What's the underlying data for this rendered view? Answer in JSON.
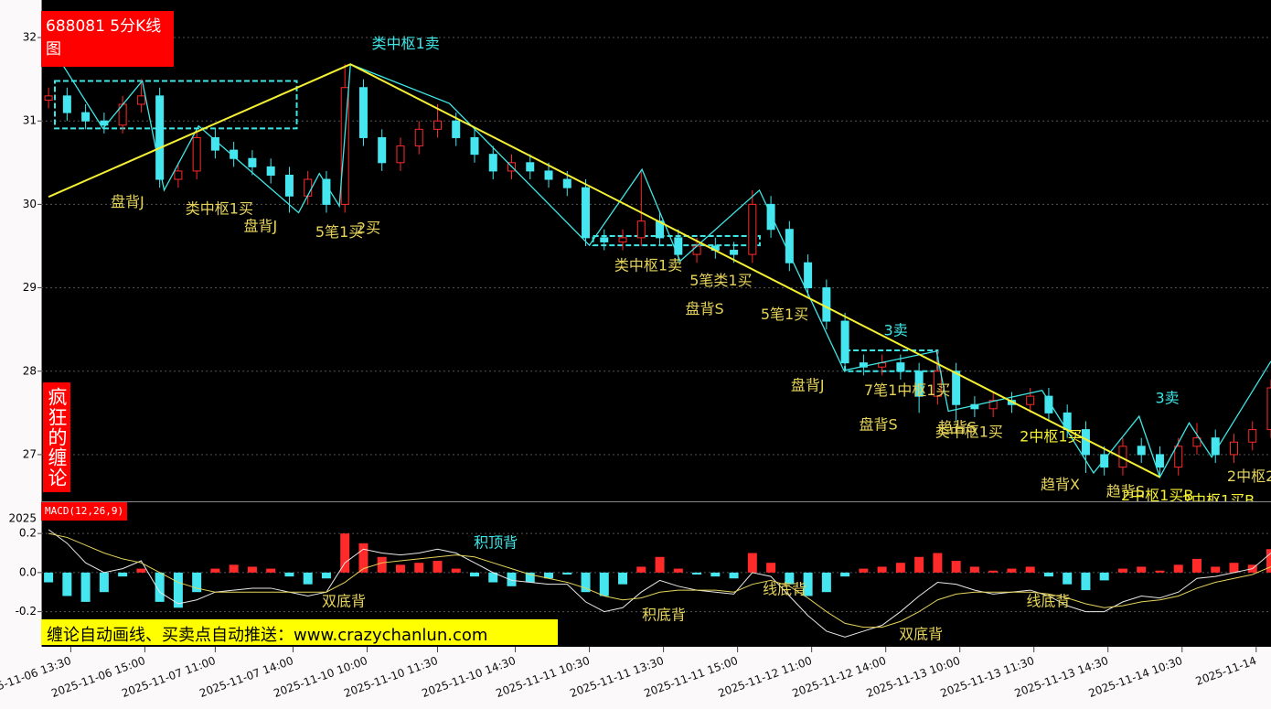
{
  "chart_data": {
    "type": "candlestick",
    "title": "688081 5分K线图",
    "brand": "疯狂的缠论",
    "banner": "缠论自动画线、买卖点自动推送：www.crazychanlun.com",
    "up_color": "#ff2a2a",
    "down_color": "#45e6f0",
    "grid": true,
    "xlim": [
      -2,
      330
    ],
    "ylim": [
      26.44,
      32.45
    ],
    "yticks": [
      27,
      28,
      29,
      30,
      31,
      32
    ],
    "xticks": [
      {
        "value": 6,
        "label": "2025-11-06 13:30"
      },
      {
        "value": 26,
        "label": "2025-11-06 15:00"
      },
      {
        "value": 45,
        "label": "2025-11-07 11:00"
      },
      {
        "value": 66,
        "label": "2025-11-07 14:00"
      },
      {
        "value": 86,
        "label": "2025-11-10 10:00"
      },
      {
        "value": 105,
        "label": "2025-11-10 11:30"
      },
      {
        "value": 126,
        "label": "2025-11-10 14:30"
      },
      {
        "value": 146,
        "label": "2025-11-11 10:30"
      },
      {
        "value": 166,
        "label": "2025-11-11 13:30"
      },
      {
        "value": 186,
        "label": "2025-11-11 15:00"
      },
      {
        "value": 206,
        "label": "2025-11-12 11:00"
      },
      {
        "value": 226,
        "label": "2025-11-12 14:00"
      },
      {
        "value": 246,
        "label": "2025-11-13 10:00"
      },
      {
        "value": 266,
        "label": "2025-11-13 11:30"
      },
      {
        "value": 286,
        "label": "2025-11-13 14:30"
      },
      {
        "value": 306,
        "label": "2025-11-14 10:30"
      },
      {
        "value": 326,
        "label": "2025-11-14"
      }
    ],
    "candles": {
      "x": [
        0,
        5,
        10,
        15,
        20,
        25,
        30,
        35,
        40,
        45,
        50,
        55,
        60,
        65,
        70,
        75,
        80,
        85,
        90,
        95,
        100,
        105,
        110,
        115,
        120,
        125,
        130,
        135,
        140,
        145,
        150,
        155,
        160,
        165,
        170,
        175,
        180,
        185,
        190,
        195,
        200,
        205,
        210,
        215,
        220,
        225,
        230,
        235,
        240,
        245,
        250,
        255,
        260,
        265,
        270,
        275,
        280,
        285,
        290,
        295,
        300,
        305,
        310,
        315,
        320,
        325,
        330
      ],
      "open": [
        31.25,
        31.3,
        31.1,
        31.0,
        30.95,
        31.2,
        31.3,
        30.3,
        30.4,
        30.8,
        30.65,
        30.55,
        30.45,
        30.35,
        30.1,
        30.3,
        30.0,
        31.4,
        30.8,
        30.5,
        30.7,
        30.9,
        31.0,
        30.8,
        30.6,
        30.4,
        30.5,
        30.4,
        30.3,
        30.2,
        29.6,
        29.55,
        29.6,
        29.8,
        29.6,
        29.4,
        29.5,
        29.45,
        29.4,
        30.0,
        29.7,
        29.3,
        29.0,
        28.6,
        28.1,
        28.05,
        28.1,
        28.0,
        27.7,
        28.0,
        27.6,
        27.55,
        27.65,
        27.6,
        27.7,
        27.5,
        27.3,
        27.0,
        26.85,
        27.1,
        27.0,
        26.85,
        27.1,
        27.2,
        27.0,
        27.15,
        27.3
      ],
      "high": [
        31.4,
        31.4,
        31.2,
        31.1,
        31.3,
        31.5,
        31.4,
        30.5,
        30.9,
        30.9,
        30.75,
        30.65,
        30.55,
        30.45,
        30.4,
        30.4,
        31.68,
        31.5,
        30.9,
        30.8,
        31.0,
        31.2,
        31.1,
        30.9,
        30.7,
        30.6,
        30.6,
        30.5,
        30.4,
        30.3,
        29.7,
        29.7,
        30.4,
        29.9,
        29.7,
        29.6,
        29.6,
        29.55,
        30.17,
        30.1,
        29.8,
        29.4,
        29.1,
        28.7,
        28.2,
        28.2,
        28.2,
        28.1,
        28.24,
        28.1,
        27.7,
        27.75,
        27.75,
        27.8,
        27.8,
        27.6,
        27.4,
        27.1,
        27.2,
        27.2,
        27.1,
        27.2,
        27.38,
        27.3,
        27.25,
        27.4,
        27.9
      ],
      "low": [
        31.15,
        31.0,
        30.9,
        30.85,
        30.85,
        31.1,
        30.2,
        30.2,
        30.3,
        30.55,
        30.45,
        30.35,
        30.25,
        29.9,
        30.0,
        29.9,
        29.9,
        30.7,
        30.4,
        30.4,
        30.6,
        30.8,
        30.7,
        30.5,
        30.3,
        30.3,
        30.3,
        30.2,
        30.1,
        29.5,
        29.45,
        29.45,
        29.5,
        29.5,
        29.3,
        29.3,
        29.35,
        29.3,
        29.3,
        29.6,
        29.2,
        28.9,
        28.5,
        28.0,
        27.95,
        27.95,
        27.9,
        27.5,
        27.6,
        27.4,
        27.45,
        27.45,
        27.5,
        27.5,
        27.4,
        27.2,
        26.78,
        26.75,
        26.75,
        26.9,
        26.73,
        26.75,
        27.0,
        26.9,
        26.9,
        27.05,
        27.2
      ],
      "close": [
        31.3,
        31.1,
        31.0,
        30.95,
        31.2,
        31.3,
        30.3,
        30.4,
        30.8,
        30.65,
        30.55,
        30.45,
        30.35,
        30.1,
        30.3,
        30.0,
        31.4,
        30.8,
        30.5,
        30.7,
        30.9,
        31.0,
        30.8,
        30.6,
        30.4,
        30.5,
        30.4,
        30.3,
        30.2,
        29.6,
        29.55,
        29.6,
        29.8,
        29.6,
        29.4,
        29.5,
        29.45,
        29.4,
        30.0,
        29.7,
        29.3,
        29.0,
        28.6,
        28.1,
        28.05,
        28.1,
        28.0,
        27.7,
        28.0,
        27.6,
        27.55,
        27.65,
        27.6,
        27.7,
        27.5,
        27.3,
        27.0,
        26.85,
        27.1,
        27.0,
        26.85,
        27.1,
        27.2,
        27.0,
        27.15,
        27.3,
        27.8
      ]
    },
    "bi": {
      "color": "#3ee6e6",
      "x": [
        3.7,
        14.7,
        25.3,
        31.2,
        40.5,
        67.5,
        73.1,
        78.5,
        81.5,
        108.2,
        146.0,
        160.2,
        170.5,
        191.9,
        214.7,
        239.7,
        242.9,
        268.2,
        282.1,
        294.4,
        300.0,
        307.9,
        314.0,
        330.0
      ],
      "y": [
        31.68,
        30.91,
        31.48,
        30.17,
        30.94,
        29.9,
        30.37,
        29.98,
        31.68,
        31.21,
        29.51,
        30.42,
        29.32,
        30.17,
        28.01,
        28.24,
        27.52,
        27.77,
        26.78,
        27.46,
        26.73,
        27.38,
        26.97,
        28.12
      ]
    },
    "trend": {
      "color": "#f5f032",
      "x": [
        0,
        81.5,
        300.0
      ],
      "y": [
        30.09,
        31.68,
        26.73
      ]
    },
    "pivots": {
      "color": "#3ee6e6",
      "boxes": [
        {
          "x0": 1.7,
          "x1": 67.0,
          "y0": 30.91,
          "y1": 31.48
        },
        {
          "x0": 147.0,
          "x1": 192.0,
          "y0": 29.51,
          "y1": 29.62
        },
        {
          "x0": 215.0,
          "x1": 240.0,
          "y0": 28.0,
          "y1": 28.25
        }
      ]
    },
    "annotations": [
      {
        "text": "盘背J",
        "x": 21.3,
        "y": 30.02,
        "color": "#e6d35a"
      },
      {
        "text": "类中枢1买",
        "x": 46.1,
        "y": 29.94,
        "color": "#e6d35a"
      },
      {
        "text": "盘背J",
        "x": 57.2,
        "y": 29.73,
        "color": "#e6d35a"
      },
      {
        "text": "5笔1买",
        "x": 78.5,
        "y": 29.66,
        "color": "#e6d35a"
      },
      {
        "text": "2买",
        "x": 86.4,
        "y": 29.71,
        "color": "#e6d35a"
      },
      {
        "text": "类中枢1卖",
        "x": 96.4,
        "y": 31.92,
        "color": "#3ee6e6"
      },
      {
        "text": "类中枢1卖",
        "x": 161.9,
        "y": 29.26,
        "color": "#e6d35a"
      },
      {
        "text": "5笔类1买",
        "x": 181.5,
        "y": 29.08,
        "color": "#e6d35a"
      },
      {
        "text": "盘背S",
        "x": 177.1,
        "y": 28.74,
        "color": "#e6d35a"
      },
      {
        "text": "5笔1买",
        "x": 198.7,
        "y": 28.67,
        "color": "#e6d35a"
      },
      {
        "text": "3卖",
        "x": 228.7,
        "y": 28.48,
        "color": "#3ee6e6"
      },
      {
        "text": "盘背J",
        "x": 204.9,
        "y": 27.82,
        "color": "#e6d35a"
      },
      {
        "text": "7笔1中枢1买",
        "x": 231.8,
        "y": 27.76,
        "color": "#e6d35a"
      },
      {
        "text": "盘背S",
        "x": 224.0,
        "y": 27.35,
        "color": "#e6d35a"
      },
      {
        "text": "趋背S",
        "x": 245.3,
        "y": 27.32,
        "color": "#e6d35a"
      },
      {
        "text": "类中枢1买",
        "x": 248.5,
        "y": 27.26,
        "color": "#e6d35a"
      },
      {
        "text": "2中枢1买",
        "x": 270.6,
        "y": 27.21,
        "color": "#f5f032"
      },
      {
        "text": "3卖",
        "x": 302.0,
        "y": 27.67,
        "color": "#3ee6e6"
      },
      {
        "text": "趋背X",
        "x": 273.1,
        "y": 26.63,
        "color": "#e6d35a"
      },
      {
        "text": "趋背S",
        "x": 290.7,
        "y": 26.55,
        "color": "#e6d35a"
      },
      {
        "text": "2中枢1买B",
        "x": 299.3,
        "y": 26.5,
        "color": "#f5f032"
      },
      {
        "text": "2中枢1买B",
        "x": 315.8,
        "y": 26.44,
        "color": "#f5f032"
      },
      {
        "text": "2中枢2",
        "x": 324.6,
        "y": 26.73,
        "color": "#e6d35a"
      }
    ],
    "macd": {
      "title": "MACD(12,26,9)",
      "corner_label": "2025",
      "ylim": [
        -0.38,
        0.36
      ],
      "yticks": [
        0.2,
        {
          "value": 0,
          "label": "0.0"
        },
        -0.2
      ],
      "hist": [
        -0.05,
        -0.12,
        -0.15,
        -0.1,
        -0.02,
        0.02,
        -0.15,
        -0.18,
        -0.1,
        0.02,
        0.04,
        0.03,
        0.02,
        -0.02,
        -0.06,
        -0.03,
        0.2,
        0.15,
        0.08,
        0.04,
        0.05,
        0.06,
        0.02,
        -0.02,
        -0.05,
        -0.07,
        -0.05,
        -0.03,
        -0.01,
        -0.1,
        -0.12,
        -0.06,
        0.03,
        0.08,
        0.02,
        -0.01,
        -0.02,
        -0.03,
        0.1,
        0.05,
        -0.06,
        -0.12,
        -0.1,
        -0.02,
        0.02,
        0.03,
        0.05,
        0.08,
        0.1,
        0.06,
        0.03,
        0.01,
        0.02,
        0.03,
        -0.02,
        -0.06,
        -0.09,
        -0.04,
        0.02,
        0.03,
        0.01,
        0.04,
        0.07,
        0.03,
        0.05,
        0.04,
        0.12
      ],
      "lines": [
        {
          "color": "#e8e8e8",
          "values": [
            0.22,
            0.15,
            0.05,
            0.0,
            0.02,
            0.06,
            -0.1,
            -0.16,
            -0.14,
            -0.1,
            -0.09,
            -0.08,
            -0.08,
            -0.1,
            -0.12,
            -0.1,
            0.05,
            0.12,
            0.1,
            0.09,
            0.1,
            0.12,
            0.1,
            0.05,
            0.0,
            -0.04,
            -0.05,
            -0.06,
            -0.06,
            -0.15,
            -0.2,
            -0.18,
            -0.1,
            -0.04,
            -0.07,
            -0.09,
            -0.1,
            -0.11,
            0.0,
            -0.02,
            -0.12,
            -0.22,
            -0.3,
            -0.33,
            -0.3,
            -0.27,
            -0.2,
            -0.12,
            -0.05,
            -0.06,
            -0.09,
            -0.11,
            -0.1,
            -0.09,
            -0.12,
            -0.17,
            -0.2,
            -0.2,
            -0.15,
            -0.12,
            -0.13,
            -0.1,
            -0.03,
            -0.02,
            0.0,
            0.02,
            0.1
          ]
        },
        {
          "color": "#e6d35a",
          "values": [
            0.2,
            0.18,
            0.14,
            0.1,
            0.07,
            0.05,
            0.0,
            -0.05,
            -0.08,
            -0.1,
            -0.1,
            -0.1,
            -0.1,
            -0.1,
            -0.1,
            -0.1,
            -0.05,
            0.02,
            0.05,
            0.06,
            0.07,
            0.08,
            0.09,
            0.08,
            0.05,
            0.02,
            -0.01,
            -0.03,
            -0.05,
            -0.08,
            -0.12,
            -0.14,
            -0.13,
            -0.1,
            -0.09,
            -0.09,
            -0.09,
            -0.1,
            -0.06,
            -0.04,
            -0.07,
            -0.13,
            -0.2,
            -0.26,
            -0.28,
            -0.28,
            -0.25,
            -0.2,
            -0.14,
            -0.11,
            -0.1,
            -0.1,
            -0.1,
            -0.1,
            -0.11,
            -0.13,
            -0.16,
            -0.18,
            -0.17,
            -0.15,
            -0.14,
            -0.12,
            -0.08,
            -0.05,
            -0.03,
            -0.01,
            0.03
          ]
        }
      ],
      "annotations": [
        {
          "text": "积顶背",
          "x": 120.7,
          "y": 0.15,
          "color": "#3ee6e6"
        },
        {
          "text": "双底背",
          "x": 79.7,
          "y": -0.15,
          "color": "#e6d35a"
        },
        {
          "text": "积底背",
          "x": 166.1,
          "y": -0.22,
          "color": "#e6d35a"
        },
        {
          "text": "线底背",
          "x": 198.7,
          "y": -0.09,
          "color": "#e6d35a"
        },
        {
          "text": "双底背",
          "x": 235.5,
          "y": -0.32,
          "color": "#e6d35a"
        },
        {
          "text": "线底背",
          "x": 269.9,
          "y": -0.15,
          "color": "#e6d35a"
        }
      ]
    }
  }
}
